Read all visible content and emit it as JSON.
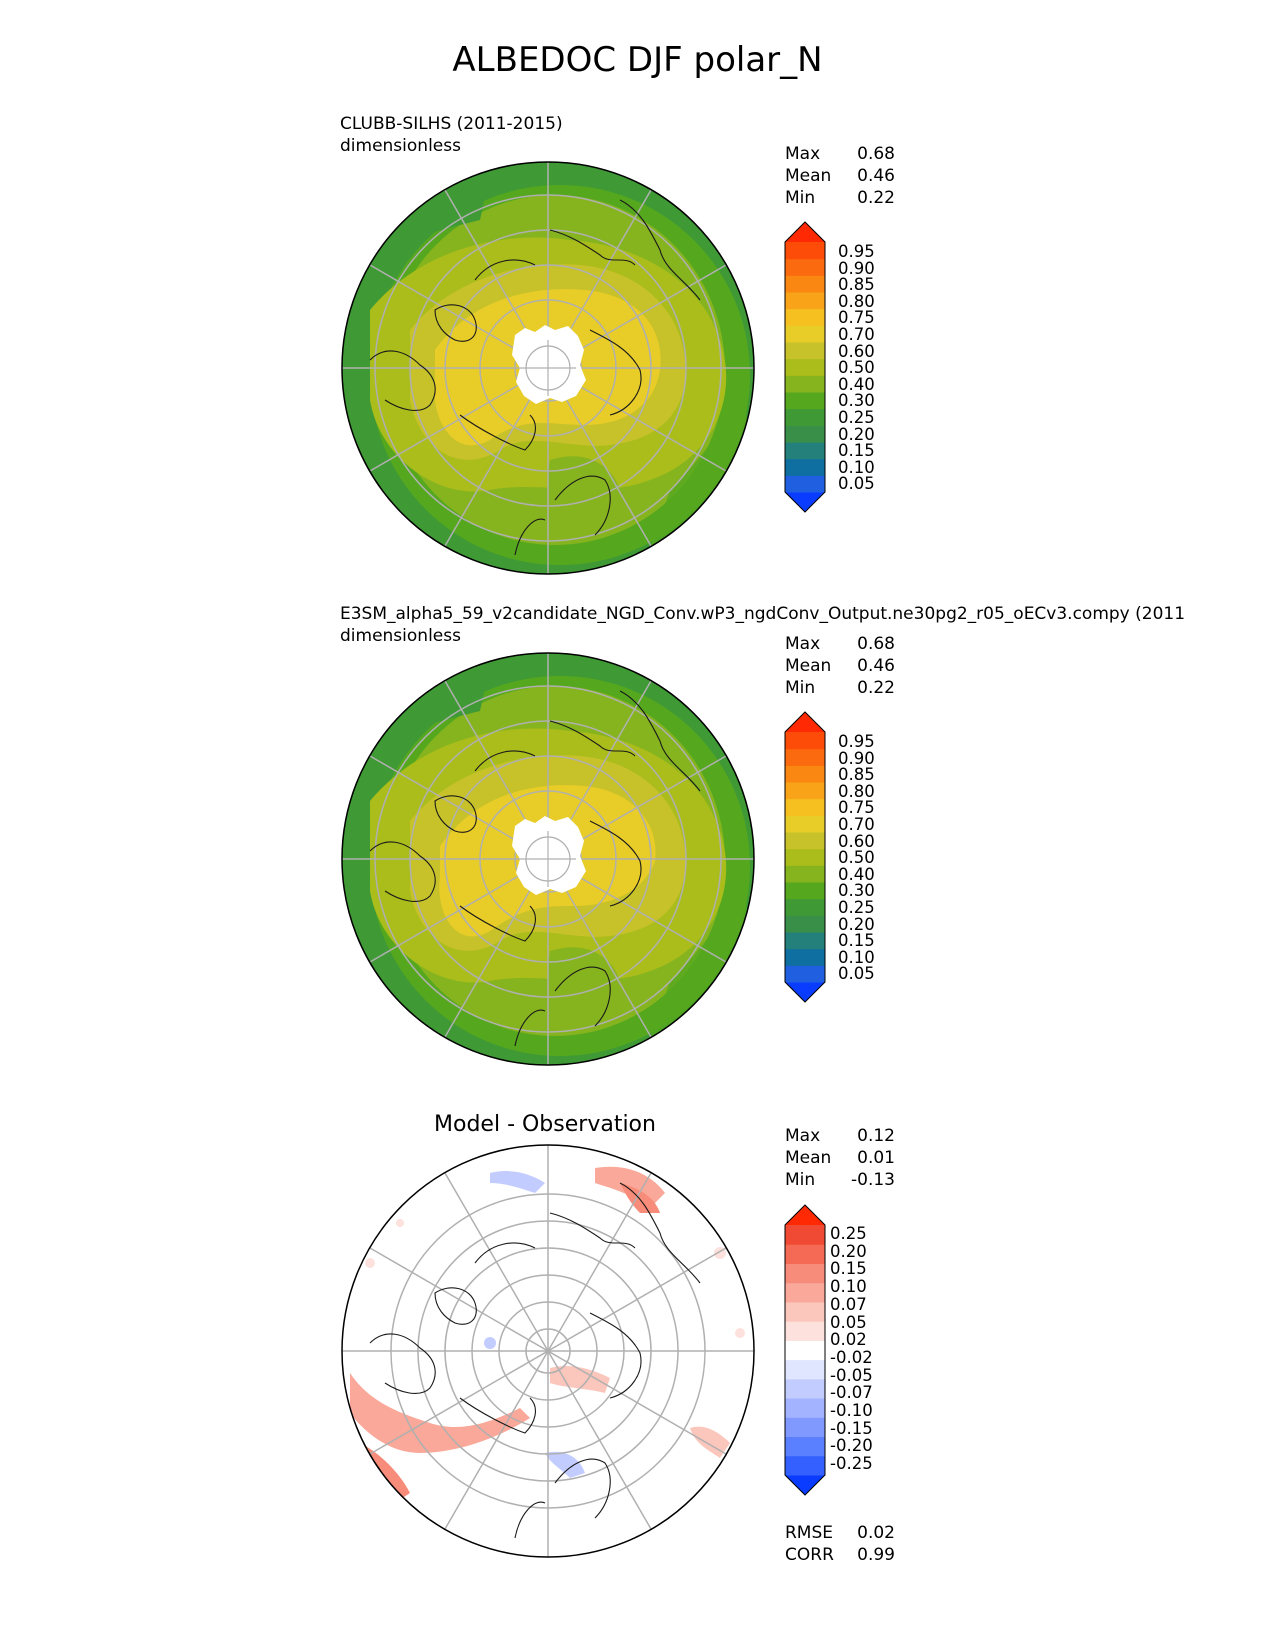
{
  "title": "ALBEDOC DJF polar_N",
  "panels": [
    {
      "id": "test",
      "title_line1": "CLUBB-SILHS (2011-2015)",
      "title_line2": "dimensionless",
      "stats": [
        {
          "label": "Max",
          "value": "0.68"
        },
        {
          "label": "Mean",
          "value": "0.46"
        },
        {
          "label": "Min",
          "value": "0.22"
        }
      ],
      "colorbar_ticks": [
        "0.95",
        "0.90",
        "0.85",
        "0.80",
        "0.75",
        "0.70",
        "0.60",
        "0.50",
        "0.40",
        "0.30",
        "0.25",
        "0.20",
        "0.15",
        "0.10",
        "0.05"
      ]
    },
    {
      "id": "reference",
      "title_line1": "E3SM_alpha5_59_v2candidate_NGD_Conv.wP3_ngdConv_Output.ne30pg2_r05_oECv3.compy (2011",
      "title_line2": "dimensionless",
      "stats": [
        {
          "label": "Max",
          "value": "0.68"
        },
        {
          "label": "Mean",
          "value": "0.46"
        },
        {
          "label": "Min",
          "value": "0.22"
        }
      ],
      "colorbar_ticks": [
        "0.95",
        "0.90",
        "0.85",
        "0.80",
        "0.75",
        "0.70",
        "0.60",
        "0.50",
        "0.40",
        "0.30",
        "0.25",
        "0.20",
        "0.15",
        "0.10",
        "0.05"
      ]
    },
    {
      "id": "difference",
      "title": "Model - Observation",
      "stats": [
        {
          "label": "Max",
          "value": "0.12"
        },
        {
          "label": "Mean",
          "value": "0.01"
        },
        {
          "label": "Min",
          "value": "-0.13"
        }
      ],
      "colorbar_ticks": [
        "0.25",
        "0.20",
        "0.15",
        "0.10",
        "0.07",
        "0.05",
        "0.02",
        "-0.02",
        "-0.05",
        "-0.07",
        "-0.10",
        "-0.15",
        "-0.20",
        "-0.25"
      ],
      "metrics": [
        {
          "label": "RMSE",
          "value": "0.02"
        },
        {
          "label": "CORR",
          "value": "0.99"
        }
      ]
    }
  ],
  "colors": {
    "main_scale": [
      "#0a3cff",
      "#1f5fe0",
      "#0f6fa0",
      "#23807a",
      "#3a8f48",
      "#3f9a35",
      "#55a81e",
      "#86b41e",
      "#aabd1a",
      "#c7c22a",
      "#e8cc28",
      "#f6c020",
      "#f9a318",
      "#f98712",
      "#fb6a0e",
      "#fd4c08",
      "#ff2a03"
    ],
    "diff_scale": [
      "#0a3cff",
      "#3360ff",
      "#5a7fff",
      "#7f99ff",
      "#a3b3ff",
      "#c2ccff",
      "#e0e6ff",
      "#ffffff",
      "#fde1dc",
      "#fbc6bc",
      "#f9a899",
      "#f78c7a",
      "#f46a55",
      "#f04a34",
      "#ff2a03"
    ]
  }
}
